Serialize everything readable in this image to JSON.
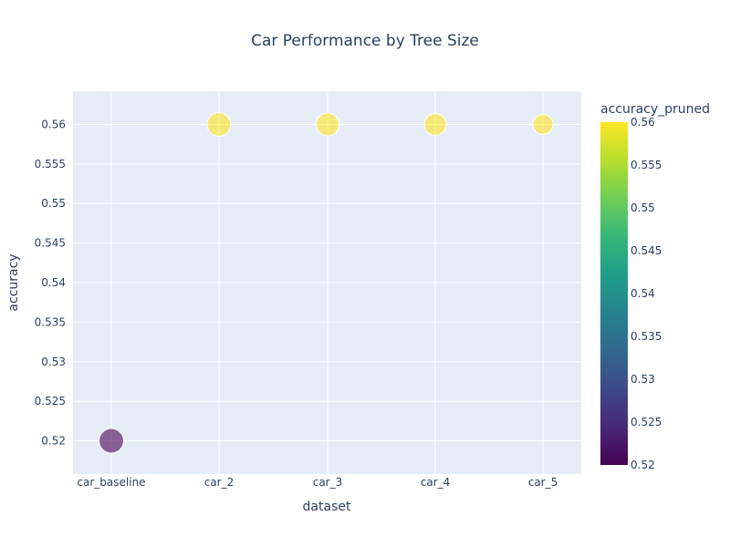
{
  "chart_data": {
    "type": "scatter",
    "title": "Car Performance by Tree Size",
    "xlabel": "dataset",
    "ylabel": "accuracy",
    "categories": [
      "car_baseline",
      "car_2",
      "car_3",
      "car_4",
      "car_5"
    ],
    "points": [
      {
        "x": "car_baseline",
        "y": 0.52,
        "color_value": 0.52,
        "size_rank": 5
      },
      {
        "x": "car_2",
        "y": 0.56,
        "color_value": 0.56,
        "size_rank": 4
      },
      {
        "x": "car_3",
        "y": 0.56,
        "color_value": 0.56,
        "size_rank": 3
      },
      {
        "x": "car_4",
        "y": 0.56,
        "color_value": 0.56,
        "size_rank": 2
      },
      {
        "x": "car_5",
        "y": 0.56,
        "color_value": 0.56,
        "size_rank": 1
      }
    ],
    "ylim": [
      0.5158,
      0.5642
    ],
    "yticks": [
      "0.52",
      "0.525",
      "0.53",
      "0.535",
      "0.54",
      "0.545",
      "0.55",
      "0.555",
      "0.56"
    ],
    "ytick_values": [
      0.52,
      0.525,
      0.53,
      0.535,
      0.54,
      0.545,
      0.55,
      0.555,
      0.56
    ],
    "colorbar": {
      "title": "accuracy_pruned",
      "min": 0.52,
      "max": 0.56,
      "ticks": [
        "0.52",
        "0.525",
        "0.53",
        "0.535",
        "0.54",
        "0.545",
        "0.55",
        "0.555",
        "0.56"
      ],
      "tick_values": [
        0.52,
        0.525,
        0.53,
        0.535,
        0.54,
        0.545,
        0.55,
        0.555,
        0.56
      ],
      "colorscale": "viridis"
    },
    "grid": true,
    "plot_bgcolor": "#e5ecf6"
  }
}
